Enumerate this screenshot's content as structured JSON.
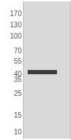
{
  "chart_data": {
    "type": "blot",
    "categories": [
      null
    ],
    "values": [
      42
    ],
    "color": "#3a3a3a",
    "log": "y",
    "ylim": [
      8.5,
      230
    ],
    "yticks": [
      10,
      15,
      25,
      35,
      40,
      55,
      70,
      100,
      130,
      170
    ],
    "grid": false
  }
}
